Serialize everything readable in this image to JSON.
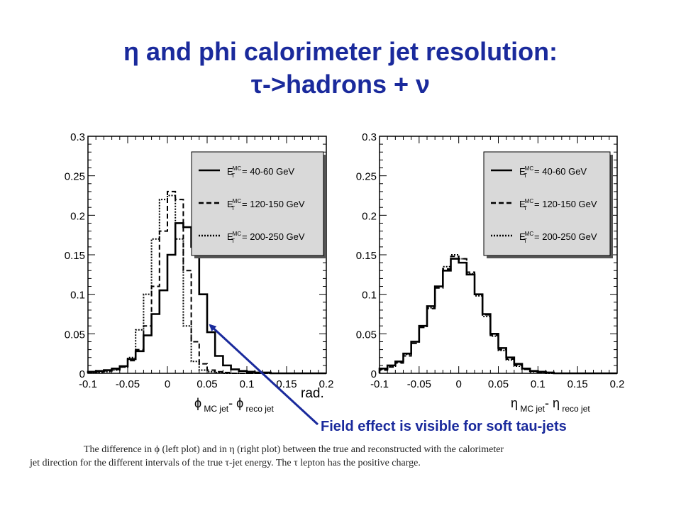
{
  "title_line1": "η and phi calorimeter jet resolution:",
  "title_line2": "τ->hadrons + ν",
  "callout": "Field effect is visible for soft tau-jets",
  "caption_line1": "The difference in ϕ (left plot) and in η (right plot) between the true and reconstructed with the calorimeter",
  "caption_line2": "jet direction for the different intervals of the true τ-jet energy. The τ lepton has the positive charge.",
  "colors": {
    "title": "#1a2a9c",
    "arrow": "#1a2a9c",
    "legend_box": "#d9d9d9",
    "hist": "#000000"
  },
  "chart_data": [
    {
      "type": "line",
      "title": "",
      "xlabel": "ϕ MC jet - ϕ reco jet rad.",
      "ylabel": "",
      "xlim": [
        -0.1,
        0.2
      ],
      "ylim": [
        0,
        0.3
      ],
      "x_ticks": [
        "-0.1",
        "-0.05",
        "0",
        "0.05",
        "0.1",
        "0.15",
        "0.2"
      ],
      "y_ticks": [
        "0",
        "0.05",
        "0.1",
        "0.15",
        "0.2",
        "0.25",
        "0.3"
      ],
      "legend": "top-right",
      "bin_edges": [
        -0.1,
        -0.09,
        -0.08,
        -0.07,
        -0.06,
        -0.05,
        -0.04,
        -0.03,
        -0.02,
        -0.01,
        0,
        0.01,
        0.02,
        0.03,
        0.04,
        0.05,
        0.06,
        0.07,
        0.08,
        0.09,
        0.1,
        0.11,
        0.12,
        0.13,
        0.14,
        0.15,
        0.16,
        0.17,
        0.18,
        0.19,
        0.2
      ],
      "series": [
        {
          "name": "E_T^MC = 40-60 GeV",
          "style": "solid",
          "values": [
            0.002,
            0.003,
            0.004,
            0.006,
            0.009,
            0.018,
            0.028,
            0.048,
            0.075,
            0.105,
            0.15,
            0.19,
            0.185,
            0.16,
            0.1,
            0.052,
            0.022,
            0.01,
            0.005,
            0.003,
            0.002,
            0.001,
            0.001,
            0,
            0,
            0,
            0,
            0,
            0,
            0
          ]
        },
        {
          "name": "E_T^MC = 120-150 GeV",
          "style": "dashed",
          "values": [
            0.001,
            0.002,
            0.003,
            0.005,
            0.008,
            0.016,
            0.03,
            0.06,
            0.11,
            0.18,
            0.23,
            0.22,
            0.13,
            0.04,
            0.012,
            0.004,
            0.002,
            0.001,
            0,
            0,
            0,
            0,
            0,
            0,
            0,
            0,
            0,
            0,
            0,
            0
          ]
        },
        {
          "name": "E_T^MC = 200-250 GeV",
          "style": "dotted",
          "values": [
            0.001,
            0.001,
            0.002,
            0.004,
            0.008,
            0.02,
            0.055,
            0.1,
            0.17,
            0.22,
            0.225,
            0.17,
            0.06,
            0.015,
            0.004,
            0.002,
            0.001,
            0,
            0,
            0,
            0,
            0,
            0,
            0,
            0,
            0,
            0,
            0,
            0,
            0
          ]
        }
      ]
    },
    {
      "type": "line",
      "title": "",
      "xlabel": "η MC jet - η reco jet",
      "ylabel": "",
      "xlim": [
        -0.1,
        0.2
      ],
      "ylim": [
        0,
        0.3
      ],
      "x_ticks": [
        "-0.1",
        "-0.05",
        "0",
        "0.05",
        "0.1",
        "0.15",
        "0.2"
      ],
      "y_ticks": [
        "0",
        "0.05",
        "0.1",
        "0.15",
        "0.2",
        "0.25",
        "0.3"
      ],
      "legend": "top-right",
      "bin_edges": [
        -0.1,
        -0.09,
        -0.08,
        -0.07,
        -0.06,
        -0.05,
        -0.04,
        -0.03,
        -0.02,
        -0.01,
        0,
        0.01,
        0.02,
        0.03,
        0.04,
        0.05,
        0.06,
        0.07,
        0.08,
        0.09,
        0.1,
        0.11,
        0.12,
        0.13,
        0.14,
        0.15,
        0.16,
        0.17,
        0.18,
        0.19,
        0.2
      ],
      "series": [
        {
          "name": "E_T^MC = 40-60 GeV",
          "style": "solid",
          "values": [
            0.006,
            0.01,
            0.015,
            0.025,
            0.04,
            0.06,
            0.085,
            0.11,
            0.13,
            0.145,
            0.14,
            0.125,
            0.1,
            0.075,
            0.05,
            0.032,
            0.02,
            0.012,
            0.006,
            0.003,
            0.002,
            0.001,
            0,
            0,
            0,
            0,
            0,
            0,
            0,
            0
          ]
        },
        {
          "name": "E_T^MC = 120-150 GeV",
          "style": "dashed",
          "values": [
            0.004,
            0.008,
            0.013,
            0.022,
            0.038,
            0.058,
            0.082,
            0.108,
            0.132,
            0.148,
            0.145,
            0.128,
            0.1,
            0.074,
            0.048,
            0.03,
            0.018,
            0.01,
            0.005,
            0.003,
            0.001,
            0.001,
            0,
            0,
            0,
            0,
            0,
            0,
            0,
            0
          ]
        },
        {
          "name": "E_T^MC = 200-250 GeV",
          "style": "dotted",
          "values": [
            0.005,
            0.009,
            0.014,
            0.024,
            0.04,
            0.06,
            0.083,
            0.11,
            0.135,
            0.15,
            0.145,
            0.126,
            0.098,
            0.072,
            0.047,
            0.029,
            0.017,
            0.009,
            0.005,
            0.002,
            0.001,
            0,
            0,
            0,
            0,
            0,
            0,
            0,
            0,
            0
          ]
        }
      ]
    }
  ]
}
